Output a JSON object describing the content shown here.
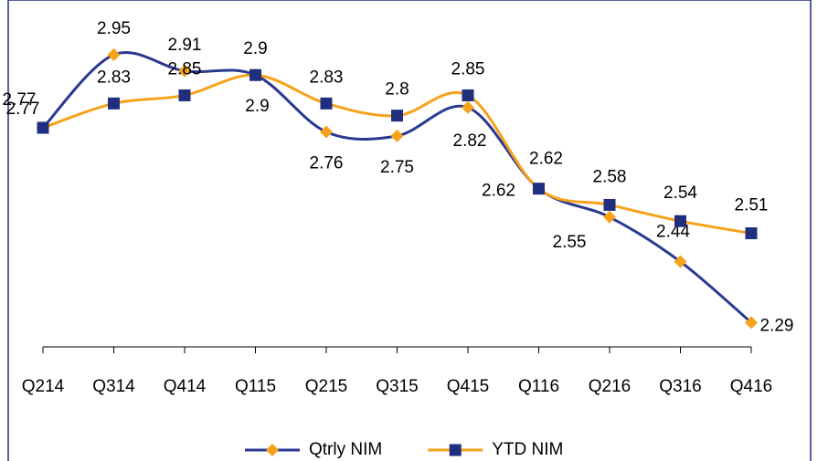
{
  "chart_data": {
    "type": "line",
    "categories": [
      "Q214",
      "Q314",
      "Q414",
      "Q115",
      "Q215",
      "Q315",
      "Q415",
      "Q116",
      "Q216",
      "Q316",
      "Q416"
    ],
    "series": [
      {
        "name": "Qtrly NIM",
        "color": "#2a3990",
        "marker_color": "#f7a21b",
        "marker": "diamond",
        "values": [
          2.77,
          2.95,
          2.91,
          2.9,
          2.76,
          2.75,
          2.82,
          2.62,
          2.55,
          2.44,
          2.29
        ]
      },
      {
        "name": "YTD NIM",
        "color": "#f7a21b",
        "marker_color": "#1f2e7e",
        "marker": "square",
        "values": [
          2.77,
          2.83,
          2.85,
          2.9,
          2.83,
          2.8,
          2.85,
          2.62,
          2.58,
          2.54,
          2.51
        ]
      }
    ],
    "ylim": [
      2.23,
      3.04
    ],
    "grid": false,
    "legend": "bottom",
    "smooth": true
  }
}
